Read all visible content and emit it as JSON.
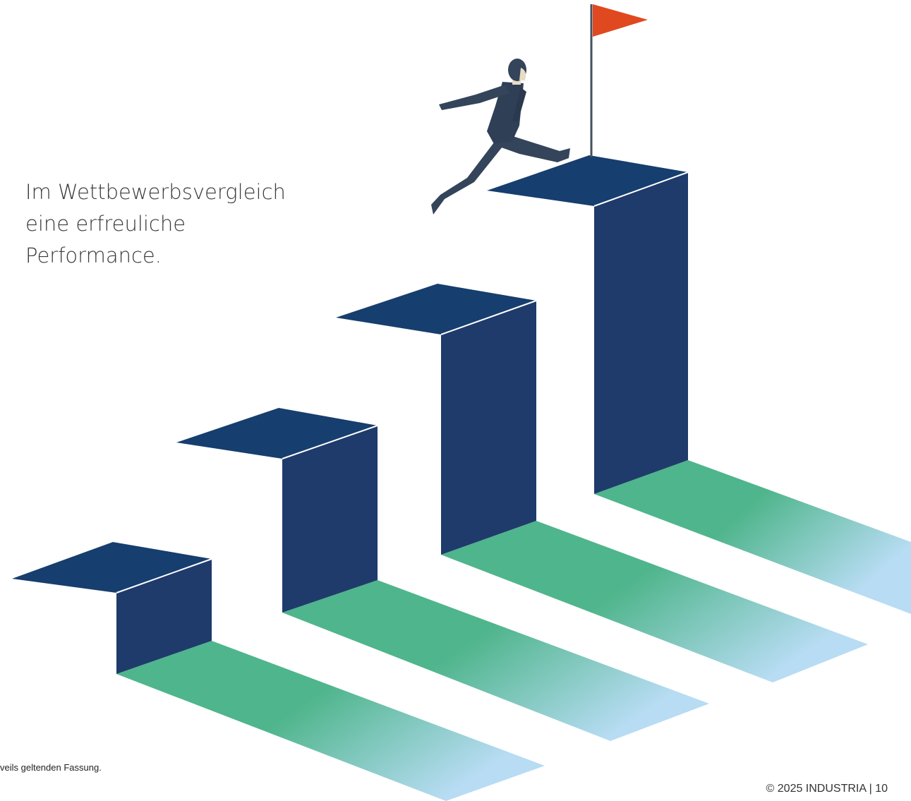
{
  "headline": {
    "lines": [
      "Im Wettbewerbsvergleich",
      "eine erfreuliche",
      "Performance."
    ]
  },
  "footnote": "veils geltenden Fassung.",
  "copyright": "© 2025 INDUSTRIA | 10",
  "illustration": {
    "subject": "stairs-with-climber-and-flag",
    "step_count": 4,
    "colors": {
      "step_top": "#163e6e",
      "step_front": "#1f3b6b",
      "shadow_start": "#4fb58c",
      "shadow_end": "#b7dcf3",
      "flag": "#e0481f",
      "figure": "#34445a"
    }
  }
}
